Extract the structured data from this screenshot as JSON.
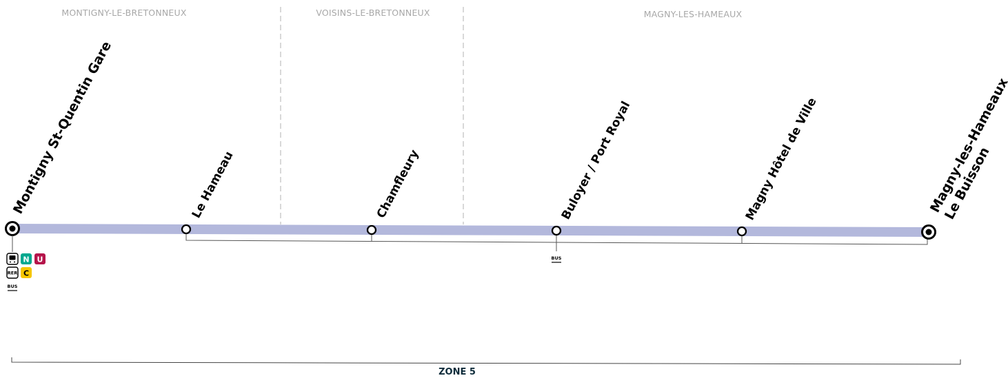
{
  "communes": [
    {
      "id": "montigny",
      "label": "MONTIGNY-LE-BRETONNEUX"
    },
    {
      "id": "voisins",
      "label": "VOISINS-LE-BRETONNEUX"
    },
    {
      "id": "magny",
      "label": "MAGNY-LES-HAMEAUX"
    }
  ],
  "stops": [
    {
      "id": "montigny-st-quentin-gare",
      "name": "Montigny St-Quentin Gare",
      "terminus": true
    },
    {
      "id": "le-hameau",
      "name": "Le Hameau",
      "terminus": false
    },
    {
      "id": "chamfleury",
      "name": "Chamfleury",
      "terminus": false
    },
    {
      "id": "buloyer-port-royal",
      "name": "Buloyer / Port Royal",
      "terminus": false
    },
    {
      "id": "magny-hotel-de-ville",
      "name": "Magny Hôtel de Ville",
      "terminus": false
    },
    {
      "id": "magny-les-hameaux-le-buisson",
      "name_line1": "Magny-les-Hameaux",
      "name_line2": "Le Buisson",
      "terminus": true
    }
  ],
  "correspondences": {
    "montigny": {
      "train_lines": [
        {
          "letter": "N",
          "color": "#00a88f"
        },
        {
          "letter": "U",
          "color": "#b5154b"
        }
      ],
      "rer": {
        "label": "RER",
        "line": "C",
        "color": "#f6c600"
      },
      "bus_label": "BUS"
    },
    "buloyer": {
      "bus_label": "BUS"
    }
  },
  "zone": {
    "label": "ZONE 5"
  },
  "colors": {
    "line": "#b3b8dc",
    "commune_text": "#a8a8a8",
    "zone_text": "#0d2b3a"
  }
}
